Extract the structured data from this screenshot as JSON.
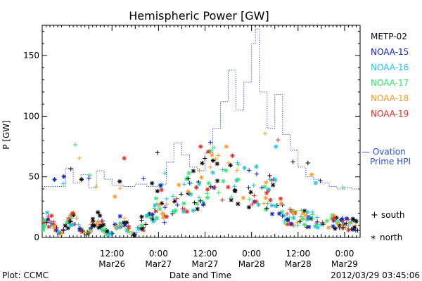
{
  "chart_data": {
    "type": "scatter",
    "title": "Hemispheric Power [GW]",
    "ylabel": "P [GW]",
    "xlabel": "Date and Time",
    "ylim": [
      0,
      175
    ],
    "yticks": [
      0,
      50,
      100,
      150
    ],
    "xlim": [
      "2012-03-25T18:00",
      "2012-03-29T04:00"
    ],
    "xticks": [
      {
        "x": "2012-03-26T12:00",
        "time": "12:00",
        "date": "Mar26"
      },
      {
        "x": "2012-03-27T00:00",
        "time": "0:00",
        "date": "Mar27"
      },
      {
        "x": "2012-03-27T12:00",
        "time": "12:00",
        "date": "Mar27"
      },
      {
        "x": "2012-03-28T00:00",
        "time": "0:00",
        "date": "Mar28"
      },
      {
        "x": "2012-03-28T12:00",
        "time": "12:00",
        "date": "Mar28"
      },
      {
        "x": "2012-03-29T00:00",
        "time": "0:00",
        "date": "Mar29"
      }
    ],
    "grid": false,
    "legend_placement": "right",
    "marker_legend": {
      "south_symbol": "+",
      "south": "south",
      "north_symbol": "*",
      "north": "north"
    },
    "ovation_label": [
      "— Ovation",
      "Prime HPI"
    ],
    "ovation": {
      "name": "Ovation Prime HPI",
      "color": "#1f4fd8",
      "x": [
        "2012-03-25T18:00",
        "2012-03-26T00:00",
        "2012-03-26T02:00",
        "2012-03-26T04:00",
        "2012-03-26T06:00",
        "2012-03-26T08:00",
        "2012-03-26T10:00",
        "2012-03-26T12:00",
        "2012-03-26T15:00",
        "2012-03-26T18:00",
        "2012-03-26T21:00",
        "2012-03-27T00:00",
        "2012-03-27T02:00",
        "2012-03-27T04:00",
        "2012-03-27T06:00",
        "2012-03-27T08:00",
        "2012-03-27T10:00",
        "2012-03-27T12:00",
        "2012-03-27T14:00",
        "2012-03-27T16:00",
        "2012-03-27T18:00",
        "2012-03-27T20:00",
        "2012-03-27T22:00",
        "2012-03-28T00:00",
        "2012-03-28T01:00",
        "2012-03-28T02:00",
        "2012-03-28T04:00",
        "2012-03-28T06:00",
        "2012-03-28T08:00",
        "2012-03-28T10:00",
        "2012-03-28T12:00",
        "2012-03-28T14:00",
        "2012-03-28T16:00",
        "2012-03-28T18:00",
        "2012-03-28T20:00",
        "2012-03-28T22:00",
        "2012-03-29T00:00",
        "2012-03-29T02:00",
        "2012-03-29T04:00"
      ],
      "values": [
        42,
        57,
        45,
        52,
        41,
        55,
        48,
        43,
        42,
        44,
        42,
        44,
        62,
        78,
        68,
        58,
        55,
        70,
        90,
        112,
        138,
        105,
        128,
        160,
        172,
        120,
        90,
        118,
        85,
        72,
        58,
        50,
        48,
        45,
        42,
        40,
        41,
        40,
        42
      ]
    },
    "series": [
      {
        "name": "METP-02",
        "color": "#000000"
      },
      {
        "name": "NOAA-15",
        "color": "#0a1fc8"
      },
      {
        "name": "NOAA-16",
        "color": "#19c3e6"
      },
      {
        "name": "NOAA-17",
        "color": "#2ee86a"
      },
      {
        "name": "NOAA-18",
        "color": "#ff9a1f"
      },
      {
        "name": "NOAA-19",
        "color": "#e6281e"
      }
    ]
  },
  "footer": {
    "plot_credit": "Plot: CCMC",
    "timestamp": "2012/03/29 03:45:06"
  }
}
